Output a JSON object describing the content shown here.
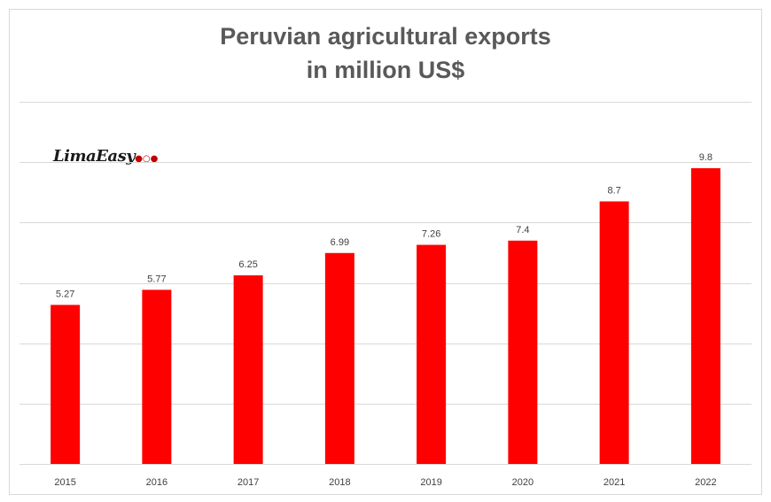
{
  "chart_data": {
    "type": "bar",
    "title_lines": [
      "Peruvian agricultural exports",
      "in million US$"
    ],
    "logo_text": "LimaEasy",
    "categories": [
      "2015",
      "2016",
      "2017",
      "2018",
      "2019",
      "2020",
      "2021",
      "2022"
    ],
    "values": [
      5.27,
      5.77,
      6.25,
      6.99,
      7.26,
      7.4,
      8.7,
      9.8
    ],
    "data_labels": [
      "5.27",
      "5.77",
      "6.25",
      "6.99",
      "7.26",
      "7.4",
      "8.7",
      "9.8"
    ],
    "ylim": [
      0,
      12
    ],
    "gridlines": true,
    "xlabel": "",
    "ylabel": "",
    "bar_color": "#ff0000",
    "legend": "none"
  }
}
